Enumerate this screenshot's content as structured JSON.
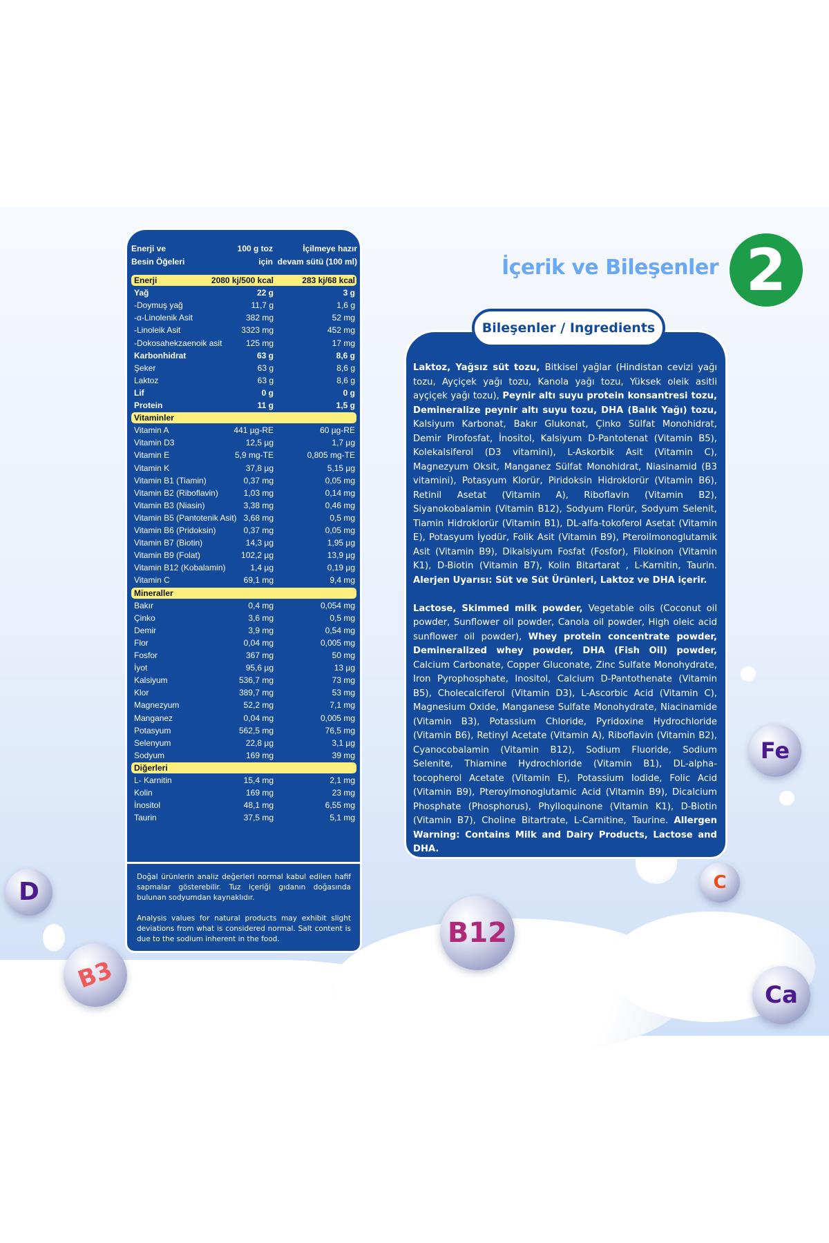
{
  "nutrition": {
    "header": {
      "col0_line1": "Enerji ve",
      "col0_line2": "Besin Öğeleri",
      "col1_line1": "100 g toz",
      "col1_line2": "için",
      "col2_line1": "İçilmeye hazır",
      "col2_line2": "devam sütü (100 ml)"
    },
    "rows": [
      {
        "type": "en",
        "label": "Enerji",
        "v1": "2080 kj/500 kcal",
        "v2": "283 kj/68 kcal"
      },
      {
        "type": "b",
        "label": "Yağ",
        "v1": "22 g",
        "v2": "3 g"
      },
      {
        "label": "-Doymuş yağ",
        "v1": "11,7 g",
        "v2": "1,6 g"
      },
      {
        "label": "-α-Linolenik Asit",
        "v1": "382 mg",
        "v2": "52 mg"
      },
      {
        "label": "-Linoleik Asit",
        "v1": "3323 mg",
        "v2": "452 mg"
      },
      {
        "label": "-Dokosahekzaenoik asit",
        "v1": "125 mg",
        "v2": "17 mg"
      },
      {
        "type": "b",
        "label": "Karbonhidrat",
        "v1": "63 g",
        "v2": "8,6 g"
      },
      {
        "label": "Şeker",
        "v1": "63 g",
        "v2": "8,6 g"
      },
      {
        "label": "Laktoz",
        "v1": "63 g",
        "v2": "8,6 g"
      },
      {
        "type": "b",
        "label": "Lif",
        "v1": "0 g",
        "v2": "0 g"
      },
      {
        "type": "b",
        "label": "Protein",
        "v1": "11 g",
        "v2": "1,5 g"
      },
      {
        "type": "sec",
        "label": "Vitaminler"
      },
      {
        "label": "Vitamin A",
        "v1": "441 µg-RE",
        "v2": "60 µg-RE"
      },
      {
        "label": "Vitamin D3",
        "v1": "12,5 µg",
        "v2": "1,7 µg"
      },
      {
        "label": "Vitamin E",
        "v1": "5,9 mg-TE",
        "v2": "0,805 mg-TE"
      },
      {
        "label": "Vitamin K",
        "v1": "37,8 µg",
        "v2": "5,15 µg"
      },
      {
        "label": "Vitamin B1 (Tiamin)",
        "v1": "0,37 mg",
        "v2": "0,05 mg"
      },
      {
        "label": "Vitamin B2 (Riboflavin)",
        "v1": "1,03 mg",
        "v2": "0,14 mg"
      },
      {
        "label": "Vitamin B3 (Niasin)",
        "v1": "3,38 mg",
        "v2": "0,46 mg"
      },
      {
        "label": "Vitamin B5 (Pantotenik Asit)",
        "v1": "3,68 mg",
        "v2": "0,5 mg"
      },
      {
        "label": "Vitamin B6 (Pridoksin)",
        "v1": "0,37 mg",
        "v2": "0,05 mg"
      },
      {
        "label": "Vitamin B7 (Biotin)",
        "v1": "14,3 µg",
        "v2": "1,95 µg"
      },
      {
        "label": "Vitamin B9 (Folat)",
        "v1": "102,2 µg",
        "v2": "13,9 µg"
      },
      {
        "label": "Vitamin B12 (Kobalamin)",
        "v1": "1,4 µg",
        "v2": "0,19 µg"
      },
      {
        "label": "Vitamin C",
        "v1": "69,1 mg",
        "v2": "9,4 mg"
      },
      {
        "type": "sec",
        "label": "Mineraller"
      },
      {
        "label": "Bakır",
        "v1": "0,4 mg",
        "v2": "0,054 mg"
      },
      {
        "label": "Çinko",
        "v1": "3,6 mg",
        "v2": "0,5 mg"
      },
      {
        "label": "Demir",
        "v1": "3,9 mg",
        "v2": "0,54 mg"
      },
      {
        "label": "Flor",
        "v1": "0,04 mg",
        "v2": "0,005 mg"
      },
      {
        "label": "Fosfor",
        "v1": "367 mg",
        "v2": "50 mg"
      },
      {
        "label": "İyot",
        "v1": "95,6 µg",
        "v2": "13 µg"
      },
      {
        "label": "Kalsiyum",
        "v1": "536,7 mg",
        "v2": "73 mg"
      },
      {
        "label": "Klor",
        "v1": "389,7 mg",
        "v2": "53 mg"
      },
      {
        "label": "Magnezyum",
        "v1": "52,2 mg",
        "v2": "7,1 mg"
      },
      {
        "label": "Manganez",
        "v1": "0,04 mg",
        "v2": "0,005 mg"
      },
      {
        "label": "Potasyum",
        "v1": "562,5 mg",
        "v2": "76,5 mg"
      },
      {
        "label": "Selenyum",
        "v1": "22,8 µg",
        "v2": "3,1 µg"
      },
      {
        "label": "Sodyum",
        "v1": "169 mg",
        "v2": "39 mg"
      },
      {
        "type": "sec",
        "label": "Diğerleri"
      },
      {
        "label": "L- Karnitin",
        "v1": "15,4 mg",
        "v2": "2,1 mg"
      },
      {
        "label": "Kolin",
        "v1": "169 mg",
        "v2": "23 mg"
      },
      {
        "label": "İnositol",
        "v1": "48,1 mg",
        "v2": "6,55 mg"
      },
      {
        "label": "Taurin",
        "v1": "37,5 mg",
        "v2": "5,1 mg"
      }
    ],
    "note_tr": "Doğal ürünlerin analiz değerleri normal kabul edilen hafif sapmalar gösterebilir. Tuz içeriği gıdanın doğasında bulunan sodyumdan kaynaklıdır.",
    "note_en": "Analysis values  for natural products may exhibit slight deviations from what is considered normal. Salt content is due to the sodium inherent in the food."
  },
  "title": "İçerik ve Bileşenler",
  "stage_number": "2",
  "ingredients": {
    "tab_label": "Bileşenler / Ingredients",
    "paragraphs": [
      [
        {
          "t": "Laktoz, Yağsız süt tozu, ",
          "b": true
        },
        {
          "t": "Bitkisel yağlar (Hindistan cevizi yağı tozu, Ayçiçek yağı tozu, Kanola yağı tozu, Yüksek oleik asitli ayçiçek yağı tozu), "
        },
        {
          "t": "Peynir altı suyu protein konsantresi tozu, Demineralize peynir altı suyu tozu, DHA (Balık Yağı) tozu, ",
          "b": true
        },
        {
          "t": "Kalsiyum Karbonat, Bakır Glukonat, Çinko Sülfat Monohidrat, Demir Pirofosfat, İnositol, Kalsiyum D-Pantotenat (Vitamin B5), Kolekalsiferol (D3 vitamini), L-Askorbik Asit (Vitamin C), Magnezyum Oksit, Manganez Sülfat Monohidrat, Niasinamid (B3 vitamini), Potasyum Klorür, Piridoksin Hidroklorür (Vitamin B6), Retinil Asetat (Vitamin A), Riboflavin (Vitamin B2), Siyanokobalamin (Vitamin B12), Sodyum Florür, Sodyum Selenit, Tiamin Hidroklorür (Vitamin B1), DL-alfa-tokoferol Asetat (Vitamin E), Potasyum İyodür, Folik Asit (Vitamin B9), Pteroilmonoglutamik Asit (Vitamin B9), Dikalsiyum Fosfat (Fosfor), Filokinon (Vitamin K1), D-Biotin (Vitamin B7), Kolin Bitartarat , L-Karnitin, Taurin. "
        },
        {
          "t": "Alerjen Uyarısı: Süt ve Süt Ürünleri, Laktoz ve DHA içerir.",
          "b": true
        }
      ],
      [
        {
          "t": "Lactose, Skimmed milk powder, ",
          "b": true
        },
        {
          "t": "Vegetable oils (Coconut oil powder, Sunflower oil powder, Canola oil powder, High oleic acid sunflower oil powder), "
        },
        {
          "t": "Whey protein concentrate powder, Demineralized whey powder, DHA (Fish Oil) powder, ",
          "b": true
        },
        {
          "t": "Calcium Carbonate, Copper Gluconate, Zinc Sulfate Monohydrate, Iron Pyrophosphate, Inositol, Calcium D-Pantothenate (Vitamin B5), Cholecalciferol (Vitamin D3), L-Ascorbic Acid (Vitamin C), Magnesium Oxide, Manganese Sulfate Monohydrate, Niacinamide (Vitamin B3), Potassium Chloride, Pyridoxine Hydrochloride (Vitamin B6), Retinyl Acetate (Vitamin A), Riboflavin (Vitamin B2), Cyanocobalamin (Vitamin B12), Sodium Fluoride, Sodium Selenite, Thiamine Hydrochloride (Vitamin B1), DL-alpha-tocopherol Acetate (Vitamin E), Potassium Iodide, Folic Acid (Vitamin B9), Pteroylmonoglutamic Acid (Vitamin B9), Dicalcium Phosphate (Phosphorus), Phylloquinone (Vitamin K1), D-Biotin (Vitamin B7), Choline Bitartrate, L-Carnitine, Taurine. "
        },
        {
          "t": "Allergen Warning: Contains Milk and Dairy Products, Lactose and DHA.",
          "b": true
        }
      ]
    ]
  },
  "vitamin_balls": [
    {
      "label": "D",
      "color": "#4b1a8c"
    },
    {
      "label": "B3",
      "color": "#ef5a5a"
    },
    {
      "label": "B12",
      "color": "#b02a7a"
    },
    {
      "label": "C",
      "color": "#ef4a1a"
    },
    {
      "label": "Fe",
      "color": "#4b1a8c"
    },
    {
      "label": "Ca",
      "color": "#4b1a8c"
    }
  ],
  "colors": {
    "panel": "#134a9b",
    "highlight": "#fbef7e",
    "title": "#6aa8f5",
    "badge": "#1d9c4a"
  }
}
